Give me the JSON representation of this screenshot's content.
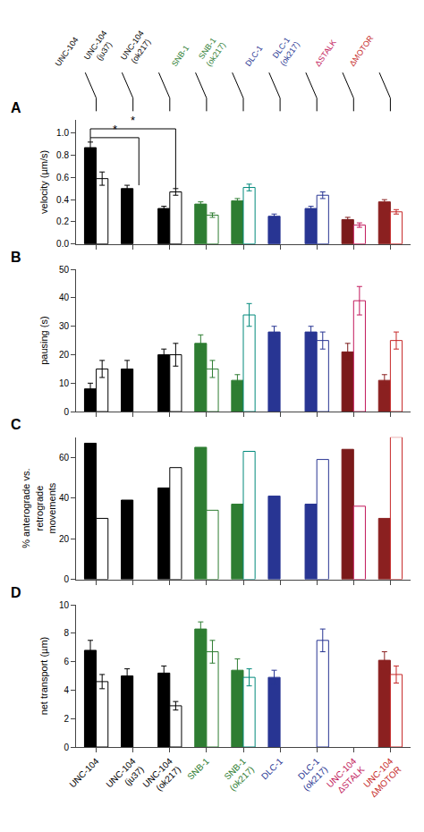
{
  "chart_data": [
    {
      "type": "bar",
      "title": "A",
      "categories": [
        "UNC-104",
        "UNC-104\n(ju37)",
        "UNC-104\n(ok217)",
        "SNB-1",
        "SNB-1\n(ok217)",
        "DLC-1",
        "DLC-1\n(ok217)",
        "UNC-104\nΔSTALK",
        "UNC-104\nΔMOTOR"
      ],
      "ylabel": "velocity (µm/s)",
      "ylim": [
        0,
        1.12
      ],
      "yticks": [
        {
          "value": 0,
          "label": "0.0"
        },
        0.2,
        0.4,
        0.6,
        0.8,
        {
          "value": 1.0,
          "label": "1.0"
        }
      ],
      "grid": false,
      "tick_labels": "y",
      "series": [
        {
          "colors": [
            "black",
            "black",
            "black",
            "#2e7d32",
            "#2e7d32",
            "#283593",
            "#283593",
            "#7b1a1a",
            "#8b2020"
          ],
          "values": [
            0.87,
            0.5,
            0.32,
            0.36,
            0.39,
            0.25,
            0.32,
            0.22,
            0.38
          ],
          "errors": [
            0.05,
            0.03,
            0.02,
            0.02,
            0.02,
            0.02,
            0.02,
            0.02,
            0.02
          ]
        },
        {
          "colors": [
            "black",
            "black",
            "black",
            "#2e7d32",
            "#00897b",
            "#283593",
            "#283593",
            "#c2185b",
            "#c62828"
          ],
          "marker": "hollow",
          "values": [
            0.59,
            null,
            0.47,
            0.26,
            0.51,
            null,
            0.44,
            0.17,
            0.29
          ],
          "errors": [
            0.06,
            null,
            0.03,
            0.02,
            0.03,
            null,
            0.03,
            0.02,
            0.02
          ]
        }
      ],
      "annotations": [
        {
          "text": "*",
          "x0": 0,
          "x1": 1,
          "y": 0.96
        },
        {
          "text": "*",
          "x0": 0,
          "x1": 2,
          "y": 1.04
        },
        {
          "text": "UNC-104",
          "x": 0,
          "color": "black"
        },
        {
          "text": "UNC-104\n(ju37)",
          "x": 1,
          "color": "black"
        },
        {
          "text": "UNC-104\n(ok217)",
          "x": 2,
          "color": "black"
        },
        {
          "text": "SNB-1",
          "x": 3,
          "color": "#2e7d32"
        },
        {
          "text": "SNB-1\n(ok217)",
          "x": 4,
          "color": "#2e7d32"
        },
        {
          "text": "DLC-1",
          "x": 5,
          "color": "#283593"
        },
        {
          "text": "DLC-1\n(ok217)",
          "x": 6,
          "color": "#283593"
        },
        {
          "text": "ΔSTALK",
          "x": 7,
          "color": "#c2185b"
        },
        {
          "text": "ΔMOTOR",
          "x": 8,
          "color": "#c62828"
        }
      ]
    },
    {
      "type": "bar",
      "title": "B",
      "categories": [
        "UNC-104",
        "UNC-104\n(ju37)",
        "UNC-104\n(ok217)",
        "SNB-1",
        "SNB-1\n(ok217)",
        "DLC-1",
        "DLC-1\n(ok217)",
        "UNC-104\nΔSTALK",
        "UNC-104\nΔMOTOR"
      ],
      "ylabel": "pausing (s)",
      "ylim": [
        0,
        50
      ],
      "yticks": [
        0,
        10,
        20,
        30,
        40,
        50
      ],
      "grid": false,
      "tick_labels": "y",
      "series": [
        {
          "colors": [
            "black",
            "black",
            "black",
            "#2e7d32",
            "#2e7d32",
            "#283593",
            "#283593",
            "#7b1a1a",
            "#8b2020"
          ],
          "values": [
            8,
            15,
            20,
            24,
            11,
            28,
            28,
            21,
            11
          ],
          "errors": [
            2,
            3,
            2,
            3,
            2,
            2,
            2,
            3,
            2
          ]
        },
        {
          "colors": [
            "black",
            "black",
            "black",
            "#2e7d32",
            "#00897b",
            "#283593",
            "#283593",
            "#c2185b",
            "#c62828"
          ],
          "marker": "hollow",
          "values": [
            15,
            null,
            20,
            15,
            34,
            null,
            25,
            39,
            25
          ],
          "errors": [
            3,
            null,
            4,
            3,
            4,
            null,
            3,
            5,
            3
          ]
        }
      ]
    },
    {
      "type": "bar",
      "title": "C",
      "categories": [
        "UNC-104",
        "UNC-104\n(ju37)",
        "UNC-104\n(ok217)",
        "SNB-1",
        "SNB-1\n(ok217)",
        "DLC-1",
        "DLC-1\n(ok217)",
        "UNC-104\nΔSTALK",
        "UNC-104\nΔMOTOR"
      ],
      "ylabel": "% anterograde vs.\nretrograde\nmovements",
      "ylim": [
        0,
        70
      ],
      "yticks": [
        0,
        20,
        40,
        60
      ],
      "grid": false,
      "tick_labels": "y",
      "series": [
        {
          "colors": [
            "black",
            "black",
            "black",
            "#2e7d32",
            "#2e7d32",
            "#283593",
            "#283593",
            "#7b1a1a",
            "#8b2020"
          ],
          "values": [
            67,
            39,
            45,
            65,
            37,
            41,
            37,
            64,
            30
          ],
          "errors": [
            0,
            0,
            0,
            0,
            0,
            0,
            0,
            0,
            0
          ]
        },
        {
          "colors": [
            "black",
            "black",
            "black",
            "#2e7d32",
            "#00897b",
            "#283593",
            "#283593",
            "#c2185b",
            "#c62828"
          ],
          "marker": "hollow",
          "values": [
            30,
            null,
            55,
            34,
            63,
            null,
            59,
            36,
            70
          ],
          "errors": [
            0,
            0,
            0,
            0,
            0,
            0,
            0,
            0,
            0
          ]
        }
      ]
    },
    {
      "type": "bar",
      "title": "D",
      "categories": [
        "UNC-104",
        "UNC-104\n(ju37)",
        "UNC-104\n(ok217)",
        "SNB-1",
        "SNB-1\n(ok217)",
        "DLC-1",
        "DLC-1\n(ok217)",
        "UNC-104\nΔSTALK",
        "UNC-104\nΔMOTOR"
      ],
      "category_colors": [
        "black",
        "black",
        "black",
        "#2e7d32",
        "#2e7d32",
        "#283593",
        "#283593",
        "#c2185b",
        "#c62828"
      ],
      "ylabel": "net transport (µm)",
      "ylim": [
        0,
        10
      ],
      "yticks": [
        0,
        2,
        4,
        6,
        8,
        10
      ],
      "grid": false,
      "series": [
        {
          "colors": [
            "black",
            "black",
            "black",
            "#2e7d32",
            "#2e7d32",
            "#283593",
            "#283593",
            "#7b1a1a",
            "#8b2020"
          ],
          "values": [
            6.8,
            5.0,
            5.2,
            8.3,
            5.4,
            4.9,
            null,
            null,
            6.1
          ],
          "errors": [
            0.7,
            0.5,
            0.5,
            0.5,
            0.8,
            0.5,
            0,
            0,
            0.6
          ]
        },
        {
          "colors": [
            "black",
            "black",
            "black",
            "#2e7d32",
            "#00897b",
            "#283593",
            "#283593",
            "#c2185b",
            "#c62828"
          ],
          "marker": "hollow",
          "values": [
            4.6,
            null,
            2.9,
            6.7,
            4.9,
            null,
            7.5,
            null,
            5.1
          ],
          "errors": [
            0.5,
            null,
            0.3,
            0.8,
            0.6,
            null,
            0.8,
            null,
            0.6
          ]
        }
      ]
    }
  ]
}
